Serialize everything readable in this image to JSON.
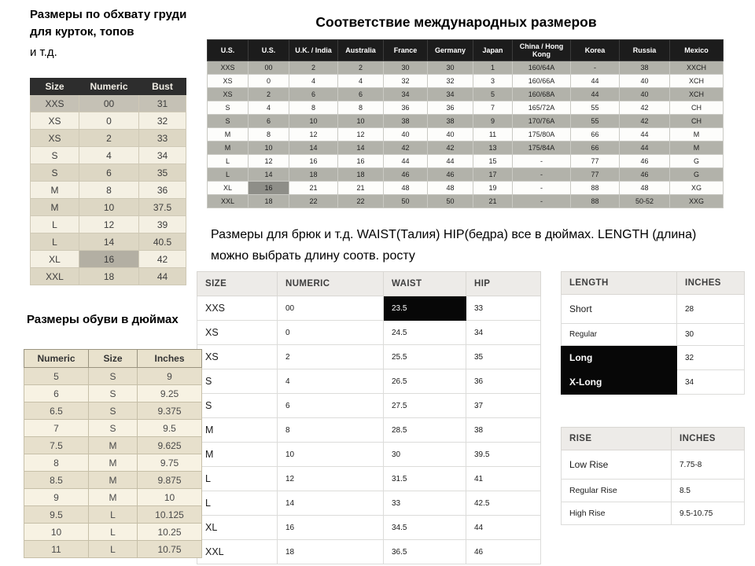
{
  "headings": {
    "bust_line1": "Размеры по обхвату груди для курток, топов",
    "bust_line2": "и т.д.",
    "intl_title": "Соответствие международных размеров",
    "pants_note": "Размеры для брюк и т.д. WAIST(Талия) HIP(бедра) все в дюймах.  LENGTH (длина) можно выбрать длину соотв. росту",
    "shoes_title": "Размеры обуви в дюймах"
  },
  "colors": {
    "dark_header": "#1c1c1c",
    "gray_row": "#b2b2aa",
    "cream_light": "#f4f0e3",
    "cream_dark": "#ddd7c4",
    "highlight_black": "#070707",
    "light_header": "#edebe8"
  },
  "bust_table": {
    "headers": [
      "Size",
      "Numeric",
      "Bust"
    ],
    "rows": [
      [
        "XXS",
        "00",
        "31"
      ],
      [
        "XS",
        "0",
        "32"
      ],
      [
        "XS",
        "2",
        "33"
      ],
      [
        "S",
        "4",
        "34"
      ],
      [
        "S",
        "6",
        "35"
      ],
      [
        "M",
        "8",
        "36"
      ],
      [
        "M",
        "10",
        "37.5"
      ],
      [
        "L",
        "12",
        "39"
      ],
      [
        "L",
        "14",
        "40.5"
      ],
      [
        "XL",
        "16",
        "42"
      ],
      [
        "XXL",
        "18",
        "44"
      ]
    ],
    "highlights": [
      {
        "row": 0,
        "col": 0,
        "style": "graybeige"
      },
      {
        "row": 0,
        "col": 1,
        "style": "graybeige"
      },
      {
        "row": 0,
        "col": 2,
        "style": "graybeige"
      },
      {
        "row": 9,
        "col": 1,
        "style": "graybeige-dark"
      }
    ]
  },
  "intl_table": {
    "headers": [
      "U.S.",
      "U.S.",
      "U.K. / India",
      "Australia",
      "France",
      "Germany",
      "Japan",
      "China / Hong Kong",
      "Korea",
      "Russia",
      "Mexico"
    ],
    "rows": [
      [
        "XXS",
        "00",
        "2",
        "2",
        "30",
        "30",
        "1",
        "160/64A",
        "-",
        "38",
        "XXCH"
      ],
      [
        "XS",
        "0",
        "4",
        "4",
        "32",
        "32",
        "3",
        "160/66A",
        "44",
        "40",
        "XCH"
      ],
      [
        "XS",
        "2",
        "6",
        "6",
        "34",
        "34",
        "5",
        "160/68A",
        "44",
        "40",
        "XCH"
      ],
      [
        "S",
        "4",
        "8",
        "8",
        "36",
        "36",
        "7",
        "165/72A",
        "55",
        "42",
        "CH"
      ],
      [
        "S",
        "6",
        "10",
        "10",
        "38",
        "38",
        "9",
        "170/76A",
        "55",
        "42",
        "CH"
      ],
      [
        "M",
        "8",
        "12",
        "12",
        "40",
        "40",
        "11",
        "175/80A",
        "66",
        "44",
        "M"
      ],
      [
        "M",
        "10",
        "14",
        "14",
        "42",
        "42",
        "13",
        "175/84A",
        "66",
        "44",
        "M"
      ],
      [
        "L",
        "12",
        "16",
        "16",
        "44",
        "44",
        "15",
        "-",
        "77",
        "46",
        "G"
      ],
      [
        "L",
        "14",
        "18",
        "18",
        "46",
        "46",
        "17",
        "-",
        "77",
        "46",
        "G"
      ],
      [
        "XL",
        "16",
        "21",
        "21",
        "48",
        "48",
        "19",
        "-",
        "88",
        "48",
        "XG"
      ],
      [
        "XXL",
        "18",
        "22",
        "22",
        "50",
        "50",
        "21",
        "-",
        "88",
        "50-52",
        "XXG"
      ]
    ],
    "highlights": [
      {
        "row": 9,
        "col": 1,
        "style": "gray-dark"
      }
    ]
  },
  "pants_table": {
    "headers": [
      "SIZE",
      "NUMERIC",
      "WAIST",
      "HIP"
    ],
    "rows": [
      [
        "XXS",
        "00",
        "23.5",
        "33"
      ],
      [
        "XS",
        "0",
        "24.5",
        "34"
      ],
      [
        "XS",
        "2",
        "25.5",
        "35"
      ],
      [
        "S",
        "4",
        "26.5",
        "36"
      ],
      [
        "S",
        "6",
        "27.5",
        "37"
      ],
      [
        "M",
        "8",
        "28.5",
        "38"
      ],
      [
        "M",
        "10",
        "30",
        "39.5"
      ],
      [
        "L",
        "12",
        "31.5",
        "41"
      ],
      [
        "L",
        "14",
        "33",
        "42.5"
      ],
      [
        "XL",
        "16",
        "34.5",
        "44"
      ],
      [
        "XXL",
        "18",
        "36.5",
        "46"
      ]
    ],
    "highlights": [
      {
        "row": 0,
        "col": 2,
        "style": "black"
      }
    ]
  },
  "length_table": {
    "headers": [
      "LENGTH",
      "INCHES"
    ],
    "rows": [
      [
        "Short",
        "28"
      ],
      [
        "Regular",
        "30"
      ],
      [
        "Long",
        "32"
      ],
      [
        "X-Long",
        "34"
      ]
    ],
    "highlights": [
      {
        "row": 2,
        "col": 0,
        "style": "black"
      },
      {
        "row": 3,
        "col": 0,
        "style": "black"
      }
    ]
  },
  "rise_table": {
    "headers": [
      "RISE",
      "INCHES"
    ],
    "rows": [
      [
        "Low Rise",
        "7.75-8"
      ],
      [
        "Regular Rise",
        "8.5"
      ],
      [
        "High Rise",
        "9.5-10.75"
      ]
    ],
    "highlights": []
  },
  "shoe_table": {
    "headers": [
      "Numeric",
      "Size",
      "Inches"
    ],
    "rows": [
      [
        "5",
        "S",
        "9"
      ],
      [
        "6",
        "S",
        "9.25"
      ],
      [
        "6.5",
        "S",
        "9.375"
      ],
      [
        "7",
        "S",
        "9.5"
      ],
      [
        "7.5",
        "M",
        "9.625"
      ],
      [
        "8",
        "M",
        "9.75"
      ],
      [
        "8.5",
        "M",
        "9.875"
      ],
      [
        "9",
        "M",
        "10"
      ],
      [
        "9.5",
        "L",
        "10.125"
      ],
      [
        "10",
        "L",
        "10.25"
      ],
      [
        "11",
        "L",
        "10.75"
      ]
    ],
    "highlights": []
  }
}
